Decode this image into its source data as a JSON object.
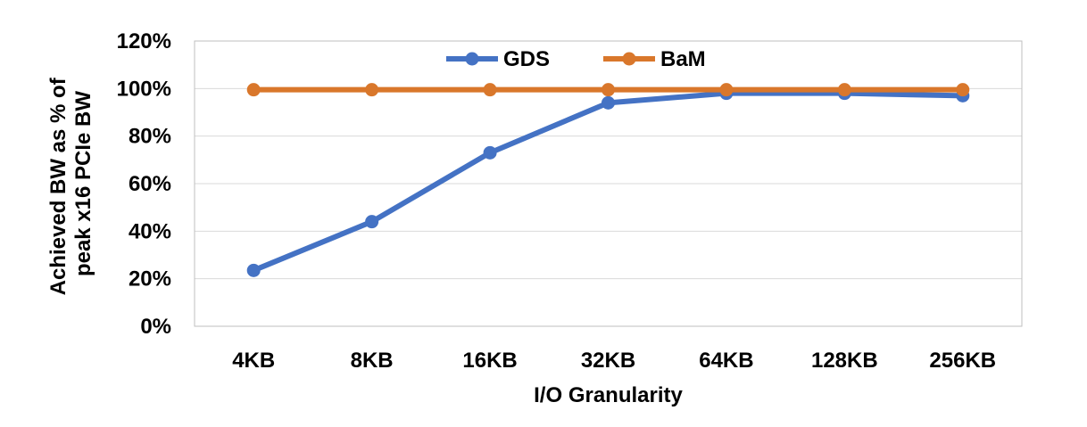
{
  "chart_data": {
    "type": "line",
    "categories": [
      "4KB",
      "8KB",
      "16KB",
      "32KB",
      "64KB",
      "128KB",
      "256KB"
    ],
    "series": [
      {
        "name": "GDS",
        "color": "#4472c4",
        "values": [
          23.5,
          44,
          73,
          94,
          98,
          98,
          97
        ]
      },
      {
        "name": "BaM",
        "color": "#d9772b",
        "values": [
          99.5,
          99.5,
          99.5,
          99.5,
          99.5,
          99.5,
          99.5
        ]
      }
    ],
    "xlabel": "I/O Granularity",
    "ylabel_lines": [
      "Achieved BW as % of",
      "peak x16 PCIe BW"
    ],
    "ylim": [
      0,
      120
    ],
    "yticks": [
      0,
      20,
      40,
      60,
      80,
      100,
      120
    ],
    "ytick_labels": [
      "0%",
      "20%",
      "40%",
      "60%",
      "80%",
      "100%",
      "120%"
    ],
    "grid": true,
    "legend_position": "top-center"
  }
}
